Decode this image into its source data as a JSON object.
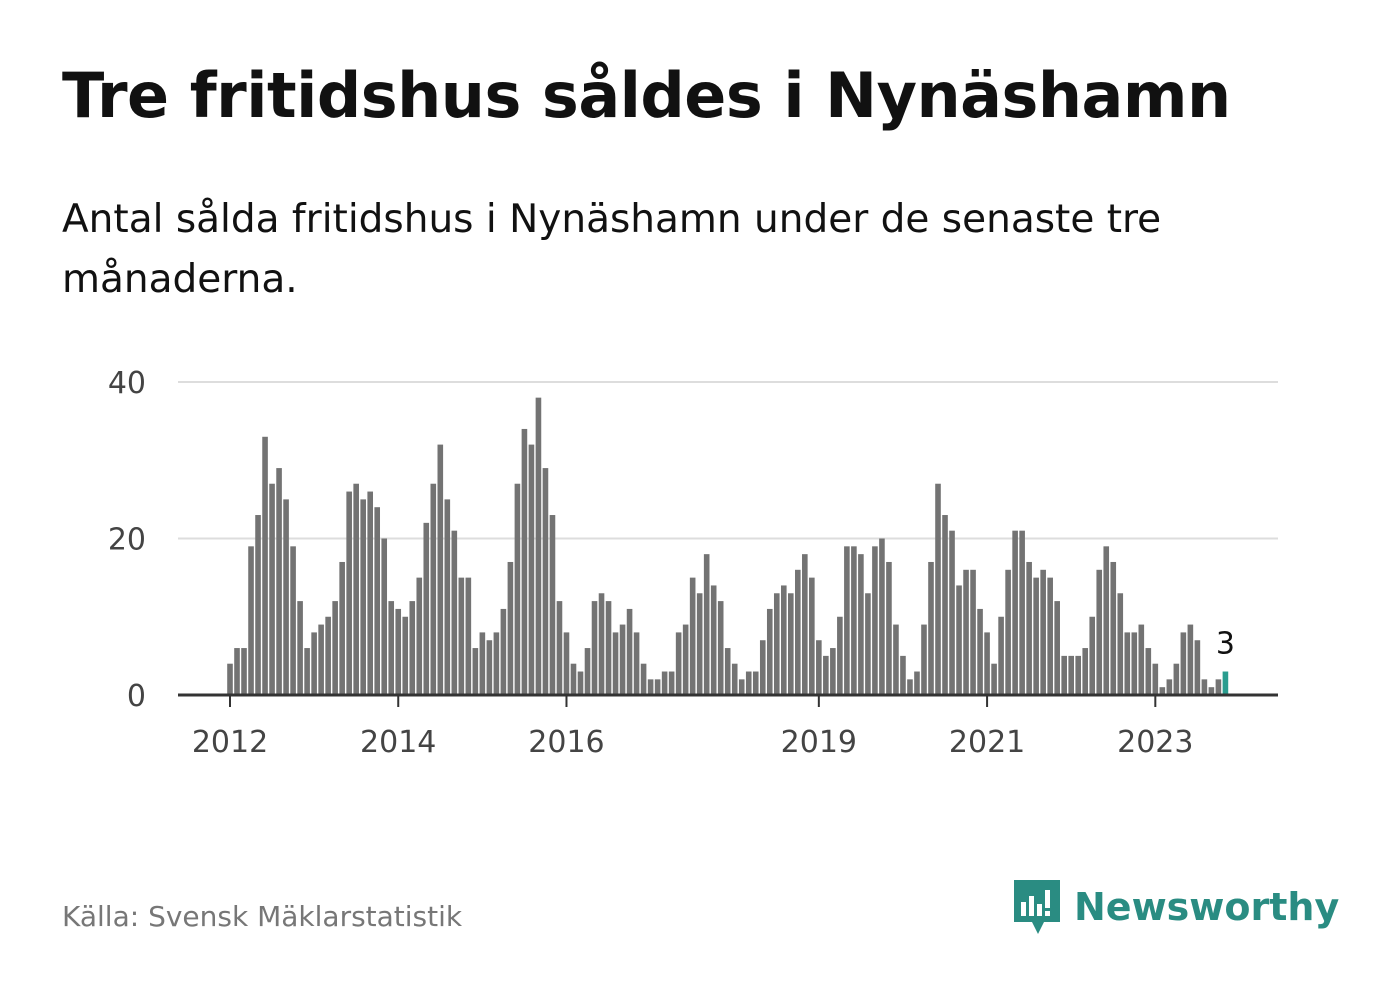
{
  "title": "Tre fritidshus såldes i Nynäshamn",
  "subtitle": "Antal sålda fritidshus i Nynäshamn under de senaste tre månaderna.",
  "source": "Källa: Svensk Mäklarstatistik",
  "brand": {
    "name": "Newsworthy",
    "icon": "newsworthy-logo-icon"
  },
  "colors": {
    "bar": "#737373",
    "highlight": "#2a9d8f",
    "grid": "#dddddd",
    "axis": "#333333",
    "brand": "#2a8c82"
  },
  "chart_data": {
    "type": "bar",
    "title": "Tre fritidshus såldes i Nynäshamn",
    "xlabel": "",
    "ylabel": "",
    "ylim": [
      0,
      40
    ],
    "yticks": [
      "0",
      "20",
      "40"
    ],
    "xticks": [
      {
        "label": "2012",
        "index": 0
      },
      {
        "label": "2014",
        "index": 24
      },
      {
        "label": "2016",
        "index": 48
      },
      {
        "label": "2019",
        "index": 84
      },
      {
        "label": "2021",
        "index": 108
      },
      {
        "label": "2023",
        "index": 132
      }
    ],
    "highlight_index": 142,
    "highlight_label": "3",
    "values": [
      4,
      6,
      6,
      19,
      23,
      33,
      27,
      29,
      25,
      19,
      12,
      6,
      8,
      9,
      10,
      12,
      17,
      26,
      27,
      25,
      26,
      24,
      20,
      12,
      11,
      10,
      12,
      15,
      22,
      27,
      32,
      25,
      21,
      15,
      15,
      6,
      8,
      7,
      8,
      11,
      17,
      27,
      34,
      32,
      38,
      29,
      23,
      12,
      8,
      4,
      3,
      6,
      12,
      13,
      12,
      8,
      9,
      11,
      8,
      4,
      2,
      2,
      3,
      3,
      8,
      9,
      15,
      13,
      18,
      14,
      12,
      6,
      4,
      2,
      3,
      3,
      7,
      11,
      13,
      14,
      13,
      16,
      18,
      15,
      7,
      5,
      6,
      10,
      19,
      19,
      18,
      13,
      19,
      20,
      17,
      9,
      5,
      2,
      3,
      9,
      17,
      27,
      23,
      21,
      14,
      16,
      16,
      11,
      8,
      4,
      10,
      16,
      21,
      21,
      17,
      15,
      16,
      15,
      12,
      5,
      5,
      5,
      6,
      10,
      16,
      19,
      17,
      13,
      8,
      8,
      9,
      6,
      4,
      1,
      2,
      4,
      8,
      9,
      7,
      2,
      1,
      2,
      3
    ]
  }
}
